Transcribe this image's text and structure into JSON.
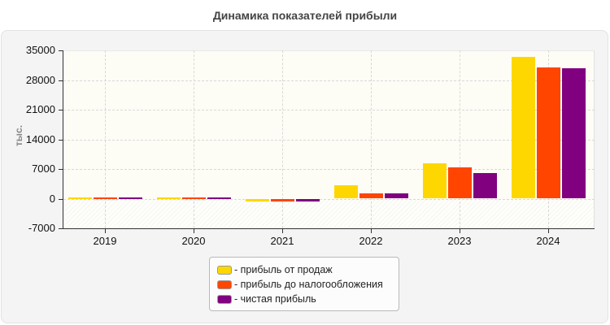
{
  "chart_data": {
    "type": "bar",
    "title": "Динамика показателей прибыли",
    "xlabel": "",
    "ylabel": "тыс.",
    "categories": [
      "2019",
      "2020",
      "2021",
      "2022",
      "2023",
      "2024"
    ],
    "series": [
      {
        "name": "- прибыль от продаж",
        "color": "#ffd700",
        "values": [
          300,
          300,
          -700,
          3100,
          8300,
          33400
        ]
      },
      {
        "name": "- прибыль до налогообложения",
        "color": "#ff4500",
        "values": [
          300,
          300,
          -700,
          1200,
          7300,
          30900
        ]
      },
      {
        "name": "- чистая прибыль",
        "color": "#800080",
        "values": [
          300,
          300,
          -700,
          1200,
          6000,
          30700
        ]
      }
    ],
    "ylim": [
      -7000,
      35000
    ],
    "yticks": [
      "35000",
      "28000",
      "21000",
      "14000",
      "7000",
      "0",
      "-7000"
    ],
    "grid": true,
    "legend_position": "bottom"
  }
}
